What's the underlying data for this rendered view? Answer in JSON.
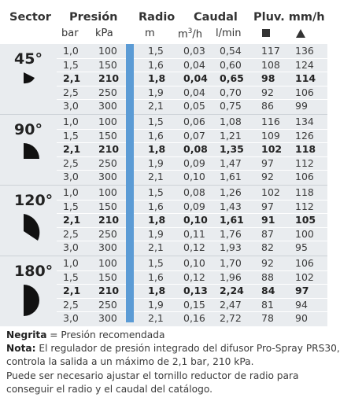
{
  "header": {
    "sector": "Sector",
    "presion": "Presión",
    "radio": "Radio",
    "caudal": "Caudal",
    "pluv": "Pluv. mm/h",
    "bar": "bar",
    "kpa": "kPa",
    "m": "m",
    "m3h_base": "m",
    "m3h_sup": "3",
    "m3h_tail": "/h",
    "lmin": "l/min"
  },
  "colors": {
    "accent_bar": "#5b9bd5",
    "row_bg": "#e9ecef"
  },
  "groups": [
    {
      "sector": "45°",
      "shape": "sector-45",
      "rows": [
        {
          "bar": "1,0",
          "kpa": "100",
          "m": "1,5",
          "m3h": "0,03",
          "lmin": "0,54",
          "sq": "117",
          "tri": "136",
          "bold": false
        },
        {
          "bar": "1,5",
          "kpa": "150",
          "m": "1,6",
          "m3h": "0,04",
          "lmin": "0,60",
          "sq": "108",
          "tri": "124",
          "bold": false
        },
        {
          "bar": "2,1",
          "kpa": "210",
          "m": "1,8",
          "m3h": "0,04",
          "lmin": "0,65",
          "sq": "98",
          "tri": "114",
          "bold": true
        },
        {
          "bar": "2,5",
          "kpa": "250",
          "m": "1,9",
          "m3h": "0,04",
          "lmin": "0,70",
          "sq": "92",
          "tri": "106",
          "bold": false
        },
        {
          "bar": "3,0",
          "kpa": "300",
          "m": "2,1",
          "m3h": "0,05",
          "lmin": "0,75",
          "sq": "86",
          "tri": "99",
          "bold": false
        }
      ]
    },
    {
      "sector": "90°",
      "shape": "sector-90",
      "rows": [
        {
          "bar": "1,0",
          "kpa": "100",
          "m": "1,5",
          "m3h": "0,06",
          "lmin": "1,08",
          "sq": "116",
          "tri": "134",
          "bold": false
        },
        {
          "bar": "1,5",
          "kpa": "150",
          "m": "1,6",
          "m3h": "0,07",
          "lmin": "1,21",
          "sq": "109",
          "tri": "126",
          "bold": false
        },
        {
          "bar": "2,1",
          "kpa": "210",
          "m": "1,8",
          "m3h": "0,08",
          "lmin": "1,35",
          "sq": "102",
          "tri": "118",
          "bold": true
        },
        {
          "bar": "2,5",
          "kpa": "250",
          "m": "1,9",
          "m3h": "0,09",
          "lmin": "1,47",
          "sq": "97",
          "tri": "112",
          "bold": false
        },
        {
          "bar": "3,0",
          "kpa": "300",
          "m": "2,1",
          "m3h": "0,10",
          "lmin": "1,61",
          "sq": "92",
          "tri": "106",
          "bold": false
        }
      ]
    },
    {
      "sector": "120°",
      "shape": "sector-120",
      "rows": [
        {
          "bar": "1,0",
          "kpa": "100",
          "m": "1,5",
          "m3h": "0,08",
          "lmin": "1,26",
          "sq": "102",
          "tri": "118",
          "bold": false
        },
        {
          "bar": "1,5",
          "kpa": "150",
          "m": "1,6",
          "m3h": "0,09",
          "lmin": "1,43",
          "sq": "97",
          "tri": "112",
          "bold": false
        },
        {
          "bar": "2,1",
          "kpa": "210",
          "m": "1,8",
          "m3h": "0,10",
          "lmin": "1,61",
          "sq": "91",
          "tri": "105",
          "bold": true
        },
        {
          "bar": "2,5",
          "kpa": "250",
          "m": "1,9",
          "m3h": "0,11",
          "lmin": "1,76",
          "sq": "87",
          "tri": "100",
          "bold": false
        },
        {
          "bar": "3,0",
          "kpa": "300",
          "m": "2,1",
          "m3h": "0,12",
          "lmin": "1,93",
          "sq": "82",
          "tri": "95",
          "bold": false
        }
      ]
    },
    {
      "sector": "180°",
      "shape": "sector-180",
      "rows": [
        {
          "bar": "1,0",
          "kpa": "100",
          "m": "1,5",
          "m3h": "0,10",
          "lmin": "1,70",
          "sq": "92",
          "tri": "106",
          "bold": false
        },
        {
          "bar": "1,5",
          "kpa": "150",
          "m": "1,6",
          "m3h": "0,12",
          "lmin": "1,96",
          "sq": "88",
          "tri": "102",
          "bold": false
        },
        {
          "bar": "2,1",
          "kpa": "210",
          "m": "1,8",
          "m3h": "0,13",
          "lmin": "2,24",
          "sq": "84",
          "tri": "97",
          "bold": true
        },
        {
          "bar": "2,5",
          "kpa": "250",
          "m": "1,9",
          "m3h": "0,15",
          "lmin": "2,47",
          "sq": "81",
          "tri": "94",
          "bold": false
        },
        {
          "bar": "3,0",
          "kpa": "300",
          "m": "2,1",
          "m3h": "0,16",
          "lmin": "2,72",
          "sq": "78",
          "tri": "90",
          "bold": false
        }
      ]
    }
  ],
  "notes": {
    "bold_label": "Negrita",
    "bold_text": " = Presión recomendada",
    "nota_label": "Nota:",
    "nota_line1": " El regulador de presión integrado del difusor Pro-Spray PRS30,",
    "line2": "controla la salida a un máximo de 2,1 bar, 210 kPa.",
    "line3": "Puede ser necesario ajustar el tornillo reductor de radio para",
    "line4": "conseguir el radio y el caudal del catálogo."
  }
}
